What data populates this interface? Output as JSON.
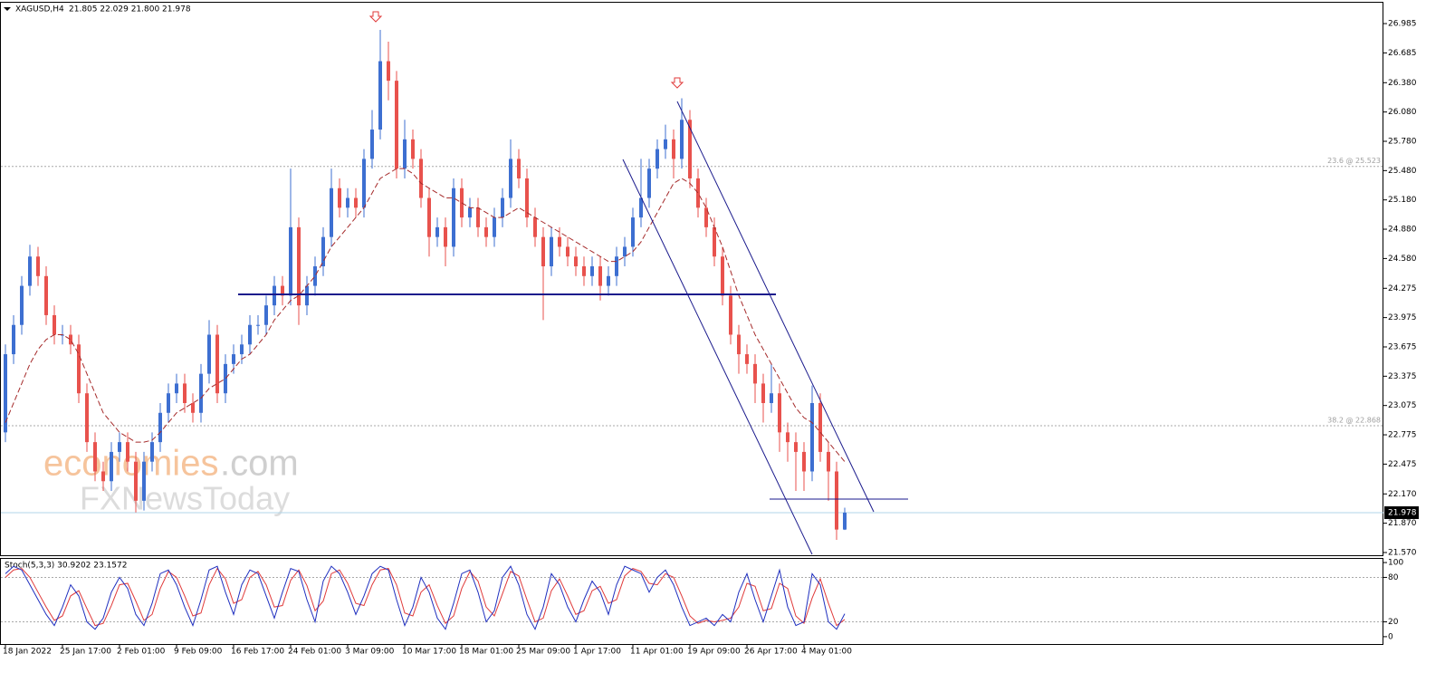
{
  "chart_data": {
    "type": "candlestick",
    "title": "XAGUSD,H4",
    "ohlc_text": "21.805 22.029 21.800 21.978",
    "categories": [
      "18 Jan 2022",
      null,
      null,
      null,
      null,
      null,
      null,
      "25 Jan 17:00",
      null,
      null,
      null,
      null,
      null,
      null,
      "2 Feb 01:00",
      null,
      null,
      null,
      null,
      null,
      null,
      "9 Feb 09:00",
      null,
      null,
      null,
      null,
      null,
      null,
      "16 Feb 17:00",
      null,
      null,
      null,
      null,
      null,
      null,
      "24 Feb 01:00",
      null,
      null,
      null,
      null,
      null,
      null,
      "3 Mar 09:00",
      null,
      null,
      null,
      null,
      null,
      null,
      "10 Mar 17:00",
      null,
      null,
      null,
      null,
      null,
      null,
      "18 Mar 01:00",
      null,
      null,
      null,
      null,
      null,
      null,
      "25 Mar 09:00",
      null,
      null,
      null,
      null,
      null,
      null,
      "1 Apr 17:00",
      null,
      null,
      null,
      null,
      null,
      null,
      "11 Apr 01:00",
      null,
      null,
      null,
      null,
      null,
      null,
      "19 Apr 09:00",
      null,
      null,
      null,
      null,
      null,
      null,
      "26 Apr 17:00",
      null,
      null,
      null,
      null,
      null,
      null,
      "4 May 01:00",
      null,
      null,
      null,
      null,
      null
    ],
    "open": [
      22.8,
      23.6,
      23.9,
      24.3,
      24.6,
      24.4,
      24.0,
      23.8,
      23.8,
      23.7,
      23.2,
      22.7,
      22.4,
      22.3,
      22.6,
      22.7,
      22.5,
      22.1,
      22.5,
      22.7,
      23.0,
      23.2,
      23.3,
      23.1,
      23.0,
      23.4,
      23.8,
      23.2,
      23.5,
      23.6,
      23.7,
      23.9,
      23.9,
      24.1,
      24.3,
      24.2,
      24.9,
      24.1,
      24.3,
      24.5,
      24.8,
      25.3,
      25.1,
      25.2,
      25.1,
      25.6,
      25.9,
      26.6,
      26.4,
      25.5,
      25.8,
      25.6,
      25.2,
      24.8,
      24.9,
      24.7,
      25.3,
      25.0,
      25.1,
      24.9,
      24.8,
      25.0,
      25.2,
      25.6,
      25.4,
      25.0,
      24.8,
      24.5,
      24.8,
      24.7,
      24.6,
      24.5,
      24.4,
      24.5,
      24.3,
      24.4,
      24.6,
      24.7,
      25.0,
      25.2,
      25.5,
      25.7,
      25.8,
      25.6,
      26.0,
      25.4,
      25.1,
      24.9,
      24.6,
      24.2,
      23.8,
      23.6,
      23.5,
      23.3,
      23.1,
      23.2,
      22.8,
      22.7,
      22.6,
      22.4,
      23.1,
      22.6,
      22.4,
      21.805
    ],
    "high": [
      23.7,
      24.0,
      24.4,
      24.72,
      24.7,
      24.5,
      24.1,
      23.9,
      23.9,
      23.8,
      23.3,
      22.8,
      22.5,
      22.7,
      22.8,
      22.8,
      22.6,
      22.6,
      22.8,
      23.1,
      23.3,
      23.4,
      23.4,
      23.2,
      23.5,
      23.95,
      23.9,
      23.6,
      23.7,
      23.8,
      24.0,
      24.0,
      24.2,
      24.4,
      24.4,
      25.5,
      25.0,
      24.4,
      24.6,
      24.9,
      25.5,
      25.4,
      25.3,
      25.3,
      25.7,
      26.1,
      26.92,
      26.8,
      26.5,
      26.0,
      25.9,
      25.7,
      25.3,
      25.0,
      25.0,
      25.4,
      25.4,
      25.2,
      25.2,
      25.0,
      25.1,
      25.3,
      25.8,
      25.7,
      25.5,
      25.1,
      24.9,
      24.9,
      24.9,
      24.8,
      24.7,
      24.6,
      24.6,
      24.6,
      24.5,
      24.7,
      24.8,
      25.1,
      25.6,
      25.6,
      25.8,
      25.95,
      25.9,
      26.22,
      26.1,
      25.5,
      25.2,
      25.0,
      24.7,
      24.3,
      23.9,
      23.7,
      23.6,
      23.4,
      23.5,
      23.3,
      22.9,
      22.8,
      22.7,
      23.28,
      23.2,
      22.7,
      22.5,
      22.029
    ],
    "low": [
      22.7,
      23.5,
      23.8,
      24.2,
      24.3,
      23.9,
      23.7,
      23.7,
      23.6,
      23.1,
      22.6,
      22.3,
      22.2,
      22.2,
      22.5,
      22.4,
      21.98,
      22.0,
      22.4,
      22.6,
      22.9,
      23.1,
      23.0,
      22.9,
      22.9,
      23.3,
      23.1,
      23.1,
      23.4,
      23.5,
      23.6,
      23.8,
      23.8,
      24.0,
      24.1,
      24.1,
      23.9,
      24.0,
      24.2,
      24.4,
      24.7,
      25.0,
      25.0,
      25.0,
      25.0,
      25.5,
      25.8,
      26.2,
      25.4,
      25.4,
      25.5,
      25.1,
      24.6,
      24.7,
      24.5,
      24.6,
      24.9,
      24.9,
      24.8,
      24.7,
      24.7,
      24.9,
      25.1,
      25.3,
      24.9,
      24.7,
      23.95,
      24.4,
      24.6,
      24.5,
      24.4,
      24.3,
      24.3,
      24.15,
      24.2,
      24.3,
      24.5,
      24.6,
      24.9,
      25.1,
      25.4,
      25.6,
      25.4,
      25.5,
      25.3,
      25.0,
      24.8,
      24.5,
      24.1,
      23.7,
      23.4,
      23.4,
      23.1,
      22.9,
      23.0,
      22.6,
      22.5,
      22.2,
      22.2,
      22.3,
      22.5,
      22.1,
      21.7,
      21.8
    ],
    "close": [
      23.6,
      23.9,
      24.3,
      24.6,
      24.4,
      24.0,
      23.8,
      23.8,
      23.7,
      23.2,
      22.7,
      22.4,
      22.3,
      22.6,
      22.7,
      22.5,
      22.1,
      22.5,
      22.7,
      23.0,
      23.2,
      23.3,
      23.1,
      23.0,
      23.4,
      23.8,
      23.2,
      23.5,
      23.6,
      23.7,
      23.9,
      23.9,
      24.1,
      24.3,
      24.2,
      24.9,
      24.1,
      24.3,
      24.5,
      24.8,
      25.3,
      25.1,
      25.2,
      25.1,
      25.6,
      25.9,
      26.6,
      26.4,
      25.5,
      25.8,
      25.6,
      25.2,
      24.8,
      24.9,
      24.7,
      25.3,
      25.0,
      25.1,
      24.9,
      24.8,
      25.0,
      25.2,
      25.6,
      25.4,
      25.0,
      24.8,
      24.5,
      24.8,
      24.7,
      24.6,
      24.5,
      24.4,
      24.5,
      24.3,
      24.4,
      24.6,
      24.7,
      25.0,
      25.2,
      25.5,
      25.7,
      25.8,
      25.6,
      26.0,
      25.4,
      25.1,
      24.9,
      24.6,
      24.2,
      23.8,
      23.6,
      23.5,
      23.3,
      23.1,
      23.2,
      22.8,
      22.7,
      22.6,
      22.4,
      23.1,
      22.6,
      22.4,
      21.805,
      21.978
    ],
    "up_color": "#3d6fd1",
    "down_color": "#e8524d",
    "ma": [
      22.9,
      23.1,
      23.3,
      23.5,
      23.65,
      23.75,
      23.8,
      23.8,
      23.75,
      23.6,
      23.4,
      23.2,
      23.0,
      22.9,
      22.8,
      22.75,
      22.7,
      22.7,
      22.72,
      22.8,
      22.9,
      23.0,
      23.05,
      23.1,
      23.15,
      23.25,
      23.3,
      23.35,
      23.45,
      23.55,
      23.6,
      23.7,
      23.8,
      23.95,
      24.05,
      24.15,
      24.2,
      24.3,
      24.4,
      24.55,
      24.7,
      24.8,
      24.9,
      25.0,
      25.1,
      25.25,
      25.4,
      25.45,
      25.5,
      25.5,
      25.45,
      25.35,
      25.3,
      25.25,
      25.2,
      25.2,
      25.15,
      25.1,
      25.1,
      25.05,
      25.0,
      25.0,
      25.05,
      25.1,
      25.05,
      25.0,
      24.95,
      24.9,
      24.85,
      24.8,
      24.75,
      24.7,
      24.65,
      24.6,
      24.55,
      24.55,
      24.6,
      24.65,
      24.75,
      24.9,
      25.05,
      25.2,
      25.35,
      25.4,
      25.35,
      25.25,
      25.1,
      24.9,
      24.7,
      24.45,
      24.2,
      24.0,
      23.8,
      23.65,
      23.5,
      23.35,
      23.2,
      23.05,
      22.95,
      22.9,
      22.8,
      22.7,
      22.6,
      22.5
    ],
    "ma_color": "#a52a2a",
    "ylim": [
      21.542,
      27.208
    ],
    "yticks": [
      26.985,
      26.685,
      {
        "value": 26.38,
        "label": "26.380"
      },
      {
        "value": 26.08,
        "label": "26.080"
      },
      {
        "value": 25.78,
        "label": "25.780"
      },
      {
        "value": 25.48,
        "label": "25.480"
      },
      {
        "value": 25.18,
        "label": "25.180"
      },
      {
        "value": 24.88,
        "label": "24.880"
      },
      {
        "value": 24.58,
        "label": "24.580"
      },
      24.275,
      23.975,
      23.675,
      23.375,
      23.075,
      22.775,
      22.475,
      {
        "value": 22.17,
        "label": "22.170"
      },
      {
        "value": 21.87,
        "label": "21.870"
      },
      {
        "value": 21.57,
        "label": "21.570"
      }
    ],
    "grid": false,
    "last_price": 21.978,
    "fib_levels": [
      {
        "value": 25.523,
        "label": "23.6 @ 25.523"
      },
      {
        "value": 22.868,
        "label": "38.2 @ 22.868"
      }
    ],
    "watermark": [
      "economies",
      ".com",
      "FXNewsToday"
    ],
    "stochastic": {
      "title": "Stoch(5,3,3) 30.9202 23.1572",
      "main": [
        85,
        95,
        90,
        70,
        50,
        30,
        15,
        40,
        70,
        55,
        20,
        10,
        25,
        60,
        80,
        65,
        30,
        15,
        45,
        85,
        90,
        70,
        40,
        15,
        50,
        90,
        95,
        60,
        30,
        70,
        90,
        85,
        55,
        25,
        60,
        92,
        88,
        50,
        20,
        75,
        95,
        85,
        60,
        30,
        55,
        85,
        95,
        90,
        50,
        15,
        40,
        80,
        60,
        25,
        10,
        45,
        85,
        90,
        60,
        20,
        35,
        80,
        95,
        70,
        30,
        10,
        40,
        85,
        70,
        40,
        20,
        50,
        75,
        60,
        30,
        70,
        95,
        90,
        85,
        60,
        80,
        90,
        70,
        40,
        15,
        20,
        25,
        15,
        30,
        20,
        60,
        85,
        50,
        20,
        55,
        90,
        40,
        15,
        20,
        85,
        70,
        20,
        10,
        30.9202
      ],
      "signal": [
        80,
        90,
        92,
        80,
        60,
        40,
        22,
        28,
        55,
        62,
        38,
        15,
        18,
        42,
        70,
        72,
        48,
        22,
        30,
        65,
        88,
        80,
        55,
        28,
        32,
        70,
        92,
        78,
        45,
        50,
        80,
        88,
        70,
        40,
        42,
        76,
        90,
        69,
        35,
        48,
        85,
        90,
        72,
        45,
        42,
        70,
        90,
        92,
        70,
        32,
        28,
        60,
        70,
        42,
        18,
        28,
        65,
        88,
        75,
        40,
        28,
        58,
        88,
        82,
        50,
        20,
        25,
        62,
        78,
        55,
        30,
        35,
        62,
        68,
        45,
        50,
        82,
        92,
        88,
        72,
        70,
        85,
        80,
        55,
        28,
        18,
        22,
        20,
        22,
        25,
        40,
        72,
        68,
        35,
        38,
        72,
        65,
        28,
        18,
        52,
        78,
        45,
        15,
        23.1572
      ],
      "main_color": "#1f2fbf",
      "signal_color": "#e03a3a",
      "ylim": [
        -9.9,
        106.2
      ],
      "yticks": [
        100,
        80,
        20,
        0
      ],
      "levels": [
        80,
        20
      ]
    }
  }
}
